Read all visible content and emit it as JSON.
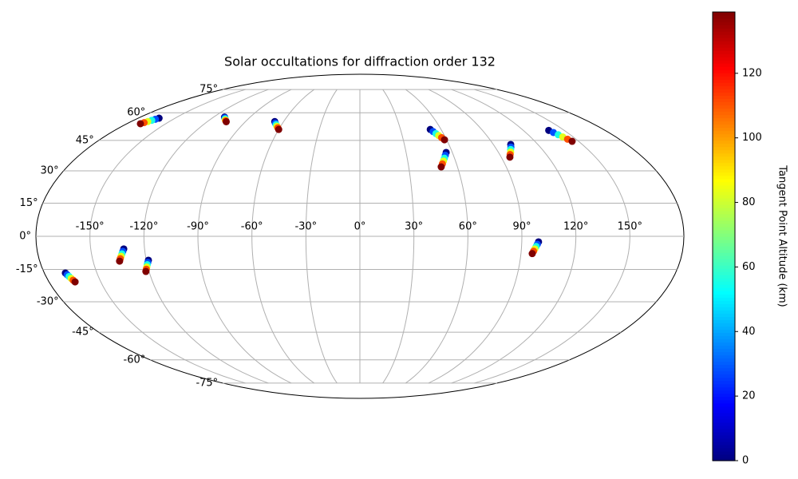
{
  "chart_data": {
    "type": "scatter",
    "projection": "mollweide",
    "title": "Solar occultations for diffraction order 132",
    "xlim": [
      -180,
      180
    ],
    "ylim": [
      -90,
      90
    ],
    "grid": true,
    "xticks": [
      {
        "value": -150,
        "label": "-150°"
      },
      {
        "value": -120,
        "label": "-120°"
      },
      {
        "value": -90,
        "label": "-90°"
      },
      {
        "value": -60,
        "label": "-60°"
      },
      {
        "value": -30,
        "label": "-30°"
      },
      {
        "value": 0,
        "label": "0°"
      },
      {
        "value": 30,
        "label": "30°"
      },
      {
        "value": 60,
        "label": "60°"
      },
      {
        "value": 90,
        "label": "90°"
      },
      {
        "value": 120,
        "label": "120°"
      },
      {
        "value": 150,
        "label": "150°"
      }
    ],
    "yticks": [
      {
        "value": -75,
        "label": "-75°"
      },
      {
        "value": -60,
        "label": "-60°"
      },
      {
        "value": -45,
        "label": "-45°"
      },
      {
        "value": -30,
        "label": "-30°"
      },
      {
        "value": -15,
        "label": "-15°"
      },
      {
        "value": 0,
        "label": "0°"
      },
      {
        "value": 15,
        "label": "15°"
      },
      {
        "value": 30,
        "label": "30°"
      },
      {
        "value": 45,
        "label": "45°"
      },
      {
        "value": 60,
        "label": "60°"
      },
      {
        "value": 75,
        "label": "75°"
      }
    ],
    "colorbar": {
      "label": "Tangent Point Altitude (km)",
      "colormap": "jet",
      "clim": [
        0,
        139
      ],
      "ticks": [
        0,
        20,
        40,
        60,
        80,
        100,
        120
      ]
    },
    "tracks": [
      {
        "lon": [
          -163,
          -164.3,
          -165.6,
          -166.9,
          -168.2,
          -169.5
        ],
        "lat": [
          56.9,
          56.3,
          55.7,
          55.0,
          54.4,
          53.8
        ],
        "altitude": [
          0,
          28,
          56,
          83,
          111,
          139
        ]
      },
      {
        "lon": [
          -111,
          -109.8,
          -108.6,
          -107.4,
          -106.2,
          -105
        ],
        "lat": [
          57.5,
          57.0,
          56.5,
          55.9,
          55.4,
          54.9
        ],
        "altitude": [
          0,
          28,
          56,
          83,
          111,
          139
        ]
      },
      {
        "lon": [
          -67,
          -65.6,
          -64.2,
          -62.8,
          -61.4,
          -60
        ],
        "lat": [
          55,
          54.1,
          53.3,
          52.4,
          51.6,
          50.7
        ],
        "altitude": [
          0,
          28,
          56,
          83,
          111,
          139
        ]
      },
      {
        "lon": [
          52,
          53.3,
          54.6,
          55.9,
          57.2,
          58.5
        ],
        "lat": [
          50.7,
          49.6,
          48.5,
          47.5,
          46.4,
          45.3
        ],
        "altitude": [
          0,
          28,
          56,
          83,
          111,
          139
        ]
      },
      {
        "lon": [
          56,
          54.8,
          53.6,
          52.4,
          51.2,
          50
        ],
        "lat": [
          38.9,
          37.5,
          36.1,
          34.7,
          33.3,
          31.9
        ],
        "altitude": [
          0,
          28,
          56,
          83,
          111,
          139
        ]
      },
      {
        "lon": [
          101.7,
          100.5,
          99.2,
          98.0,
          96.7,
          95.5
        ],
        "lat": [
          42.9,
          41.6,
          40.4,
          39.1,
          37.9,
          36.6
        ],
        "altitude": [
          0,
          28,
          56,
          83,
          111,
          139
        ]
      },
      {
        "lon": [
          138.6,
          140.0,
          141.4,
          142.7,
          144.1,
          145.5
        ],
        "lat": [
          50.2,
          49.1,
          47.9,
          46.8,
          45.6,
          44.5
        ],
        "altitude": [
          0,
          28,
          56,
          83,
          111,
          139
        ]
      },
      {
        "lon": [
          -168,
          -167.4,
          -166.8,
          -166.1,
          -165.5,
          -164.9
        ],
        "lat": [
          -16.6,
          -17.4,
          -18.2,
          -19.1,
          -19.9,
          -20.7
        ],
        "altitude": [
          0,
          28,
          56,
          83,
          111,
          139
        ]
      },
      {
        "lon": [
          -131.6,
          -132.3,
          -133.0,
          -133.7,
          -134.4,
          -135.1
        ],
        "lat": [
          -5.7,
          -6.8,
          -7.9,
          -9.0,
          -10.1,
          -11.2
        ],
        "altitude": [
          0,
          28,
          56,
          83,
          111,
          139
        ]
      },
      {
        "lon": [
          -118.8,
          -119.4,
          -120.0,
          -120.6,
          -121.2,
          -121.8
        ],
        "lat": [
          -10.8,
          -11.8,
          -12.8,
          -13.9,
          -14.9,
          -15.9
        ],
        "altitude": [
          0,
          28,
          56,
          83,
          111,
          139
        ]
      },
      {
        "lon": [
          99.3,
          98.7,
          98.1,
          97.5,
          96.9,
          96.3
        ],
        "lat": [
          -2.5,
          -3.6,
          -4.6,
          -5.7,
          -6.7,
          -7.8
        ],
        "altitude": [
          0,
          28,
          56,
          83,
          111,
          139
        ]
      }
    ]
  }
}
